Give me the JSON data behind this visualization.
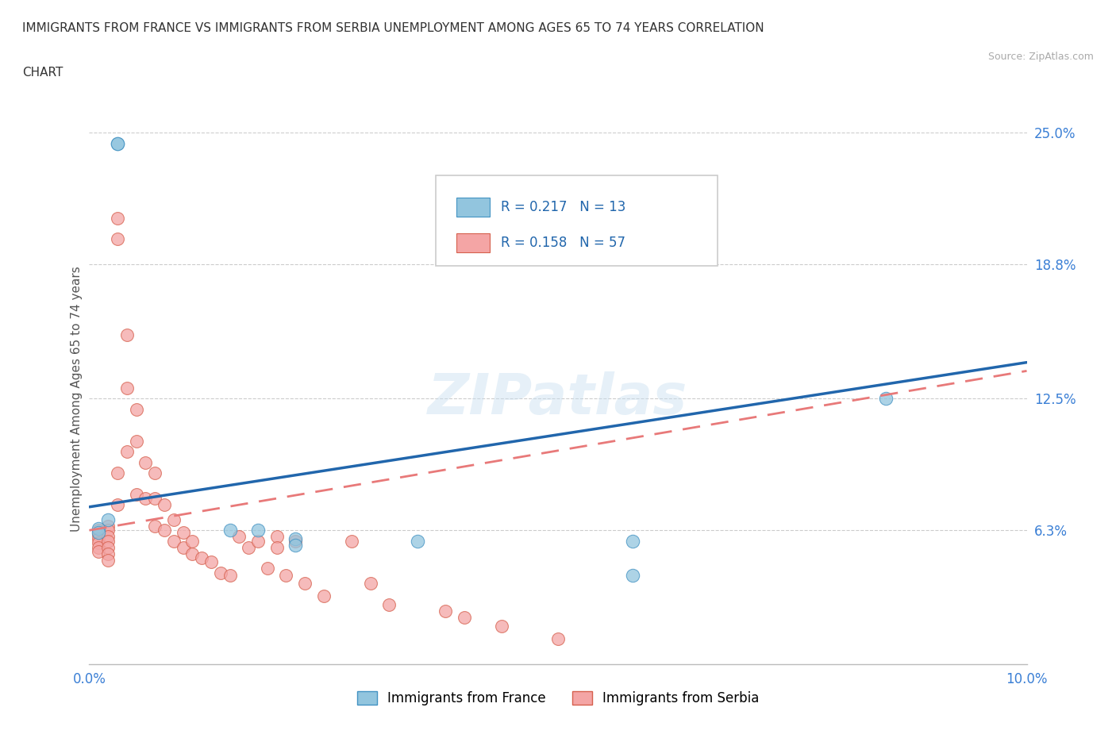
{
  "title_line1": "IMMIGRANTS FROM FRANCE VS IMMIGRANTS FROM SERBIA UNEMPLOYMENT AMONG AGES 65 TO 74 YEARS CORRELATION",
  "title_line2": "CHART",
  "source_text": "Source: ZipAtlas.com",
  "ylabel": "Unemployment Among Ages 65 to 74 years",
  "xlim": [
    0.0,
    0.1
  ],
  "ylim": [
    0.0,
    0.25
  ],
  "ytick_vals": [
    0.063,
    0.125,
    0.188,
    0.25
  ],
  "ytick_labels": [
    "6.3%",
    "12.5%",
    "18.8%",
    "25.0%"
  ],
  "xtick_vals": [
    0.0,
    0.025,
    0.05,
    0.075,
    0.1
  ],
  "xtick_labels": [
    "0.0%",
    "",
    "",
    "",
    "10.0%"
  ],
  "france_color": "#92c5de",
  "serbia_color": "#f4a5a5",
  "france_edge": "#4393c3",
  "serbia_edge": "#d6604d",
  "france_line_color": "#2166ac",
  "serbia_line_color": "#e87979",
  "R_france": 0.217,
  "N_france": 13,
  "R_serbia": 0.158,
  "N_serbia": 57,
  "watermark": "ZIPatlas",
  "legend_france": "Immigrants from France",
  "legend_serbia": "Immigrants from Serbia",
  "france_line_x0": 0.0,
  "france_line_y0": 0.074,
  "france_line_x1": 0.1,
  "france_line_y1": 0.142,
  "serbia_line_x0": 0.0,
  "serbia_line_y0": 0.063,
  "serbia_line_x1": 0.1,
  "serbia_line_y1": 0.138,
  "france_pts_x": [
    0.001,
    0.001,
    0.002,
    0.003,
    0.003,
    0.015,
    0.022,
    0.022,
    0.035,
    0.058,
    0.058,
    0.085,
    0.018
  ],
  "france_pts_y": [
    0.064,
    0.062,
    0.068,
    0.245,
    0.245,
    0.063,
    0.059,
    0.056,
    0.058,
    0.058,
    0.042,
    0.125,
    0.063
  ],
  "serbia_pts_x": [
    0.001,
    0.001,
    0.001,
    0.001,
    0.001,
    0.001,
    0.002,
    0.002,
    0.002,
    0.002,
    0.002,
    0.002,
    0.002,
    0.003,
    0.003,
    0.003,
    0.003,
    0.004,
    0.004,
    0.004,
    0.005,
    0.005,
    0.005,
    0.006,
    0.006,
    0.007,
    0.007,
    0.007,
    0.008,
    0.008,
    0.009,
    0.009,
    0.01,
    0.01,
    0.011,
    0.011,
    0.012,
    0.013,
    0.014,
    0.015,
    0.016,
    0.017,
    0.018,
    0.019,
    0.02,
    0.02,
    0.021,
    0.022,
    0.023,
    0.025,
    0.028,
    0.03,
    0.032,
    0.038,
    0.04,
    0.044,
    0.05
  ],
  "serbia_pts_y": [
    0.063,
    0.061,
    0.059,
    0.057,
    0.055,
    0.053,
    0.065,
    0.063,
    0.06,
    0.058,
    0.055,
    0.052,
    0.049,
    0.21,
    0.2,
    0.09,
    0.075,
    0.155,
    0.13,
    0.1,
    0.12,
    0.105,
    0.08,
    0.095,
    0.078,
    0.09,
    0.078,
    0.065,
    0.075,
    0.063,
    0.068,
    0.058,
    0.062,
    0.055,
    0.058,
    0.052,
    0.05,
    0.048,
    0.043,
    0.042,
    0.06,
    0.055,
    0.058,
    0.045,
    0.06,
    0.055,
    0.042,
    0.058,
    0.038,
    0.032,
    0.058,
    0.038,
    0.028,
    0.025,
    0.022,
    0.018,
    0.012
  ]
}
